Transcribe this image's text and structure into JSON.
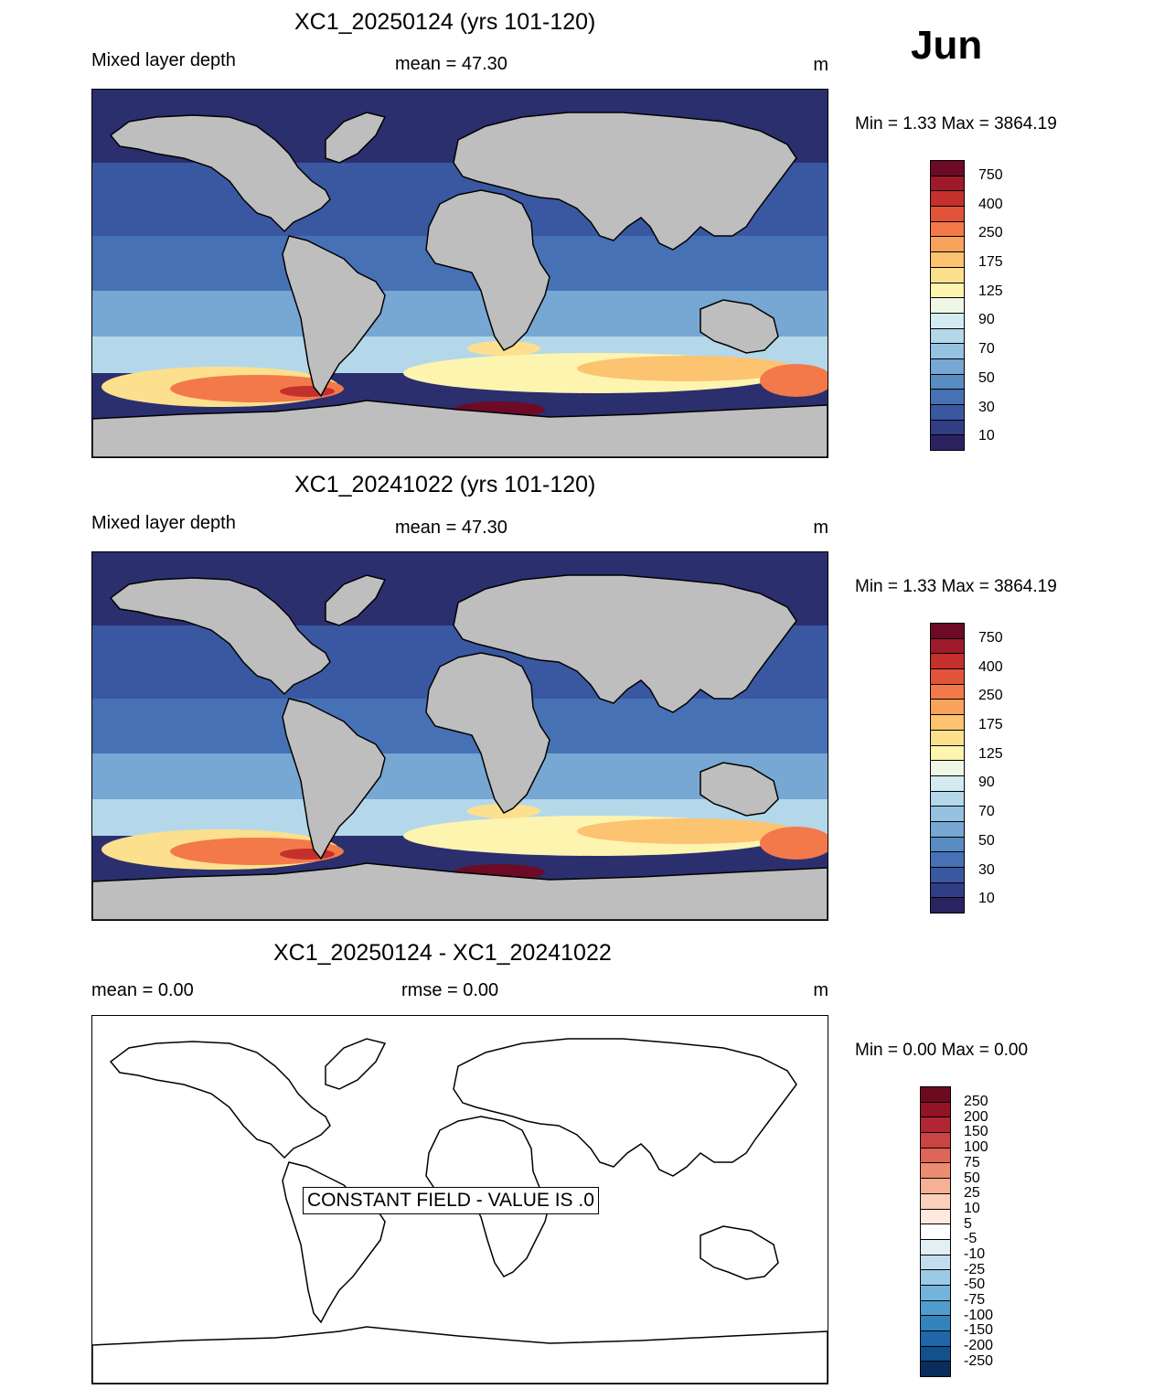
{
  "month": "Jun",
  "panels": [
    {
      "title": "XC1_20250124 (yrs 101-120)",
      "left": "Mixed layer depth",
      "center": "mean =  47.30",
      "units": "m",
      "minmax": "Min =    1.33 Max = 3864.19"
    },
    {
      "title": "XC1_20241022 (yrs 101-120)",
      "left": "Mixed layer depth",
      "center": "mean =  47.30",
      "units": "m",
      "minmax": "Min =    1.33 Max = 3864.19"
    },
    {
      "title": "XC1_20250124 - XC1_20241022",
      "left": "mean =   0.00",
      "center": "rmse =   0.00",
      "units": "m",
      "minmax": "Min =   0.00 Max =   0.00",
      "constant_text": "CONSTANT FIELD - VALUE IS .0"
    }
  ],
  "mld_colorbar": {
    "colors": [
      "#2b2360",
      "#313d85",
      "#3a58a1",
      "#4671b4",
      "#5a8cc4",
      "#77a7d3",
      "#96c2e1",
      "#b4d8ea",
      "#d3ebf1",
      "#eef7e6",
      "#fdf4b0",
      "#fde08d",
      "#fcc370",
      "#f9a35a",
      "#f3794a",
      "#e2543a",
      "#c4302c",
      "#9e1a2a",
      "#6d0a26"
    ],
    "labels": [
      "750",
      "400",
      "250",
      "175",
      "125",
      "90",
      "70",
      "50",
      "30",
      "10"
    ]
  },
  "diff_colorbar": {
    "colors": [
      "#0b2d5e",
      "#13508e",
      "#2067a8",
      "#3383bc",
      "#4f9ccd",
      "#74b4da",
      "#9ccae6",
      "#c2deed",
      "#e3eef5",
      "#ffffff",
      "#ffffff",
      "#fde9dd",
      "#fbd0bb",
      "#f6b195",
      "#ec8c70",
      "#dd6656",
      "#c94443",
      "#b02635",
      "#911427",
      "#6d0a1f"
    ],
    "labels": [
      "250",
      "200",
      "150",
      "100",
      "75",
      "50",
      "25",
      "10",
      "5",
      "-5",
      "-10",
      "-25",
      "-50",
      "-75",
      "-100",
      "-150",
      "-200",
      "-250"
    ]
  }
}
